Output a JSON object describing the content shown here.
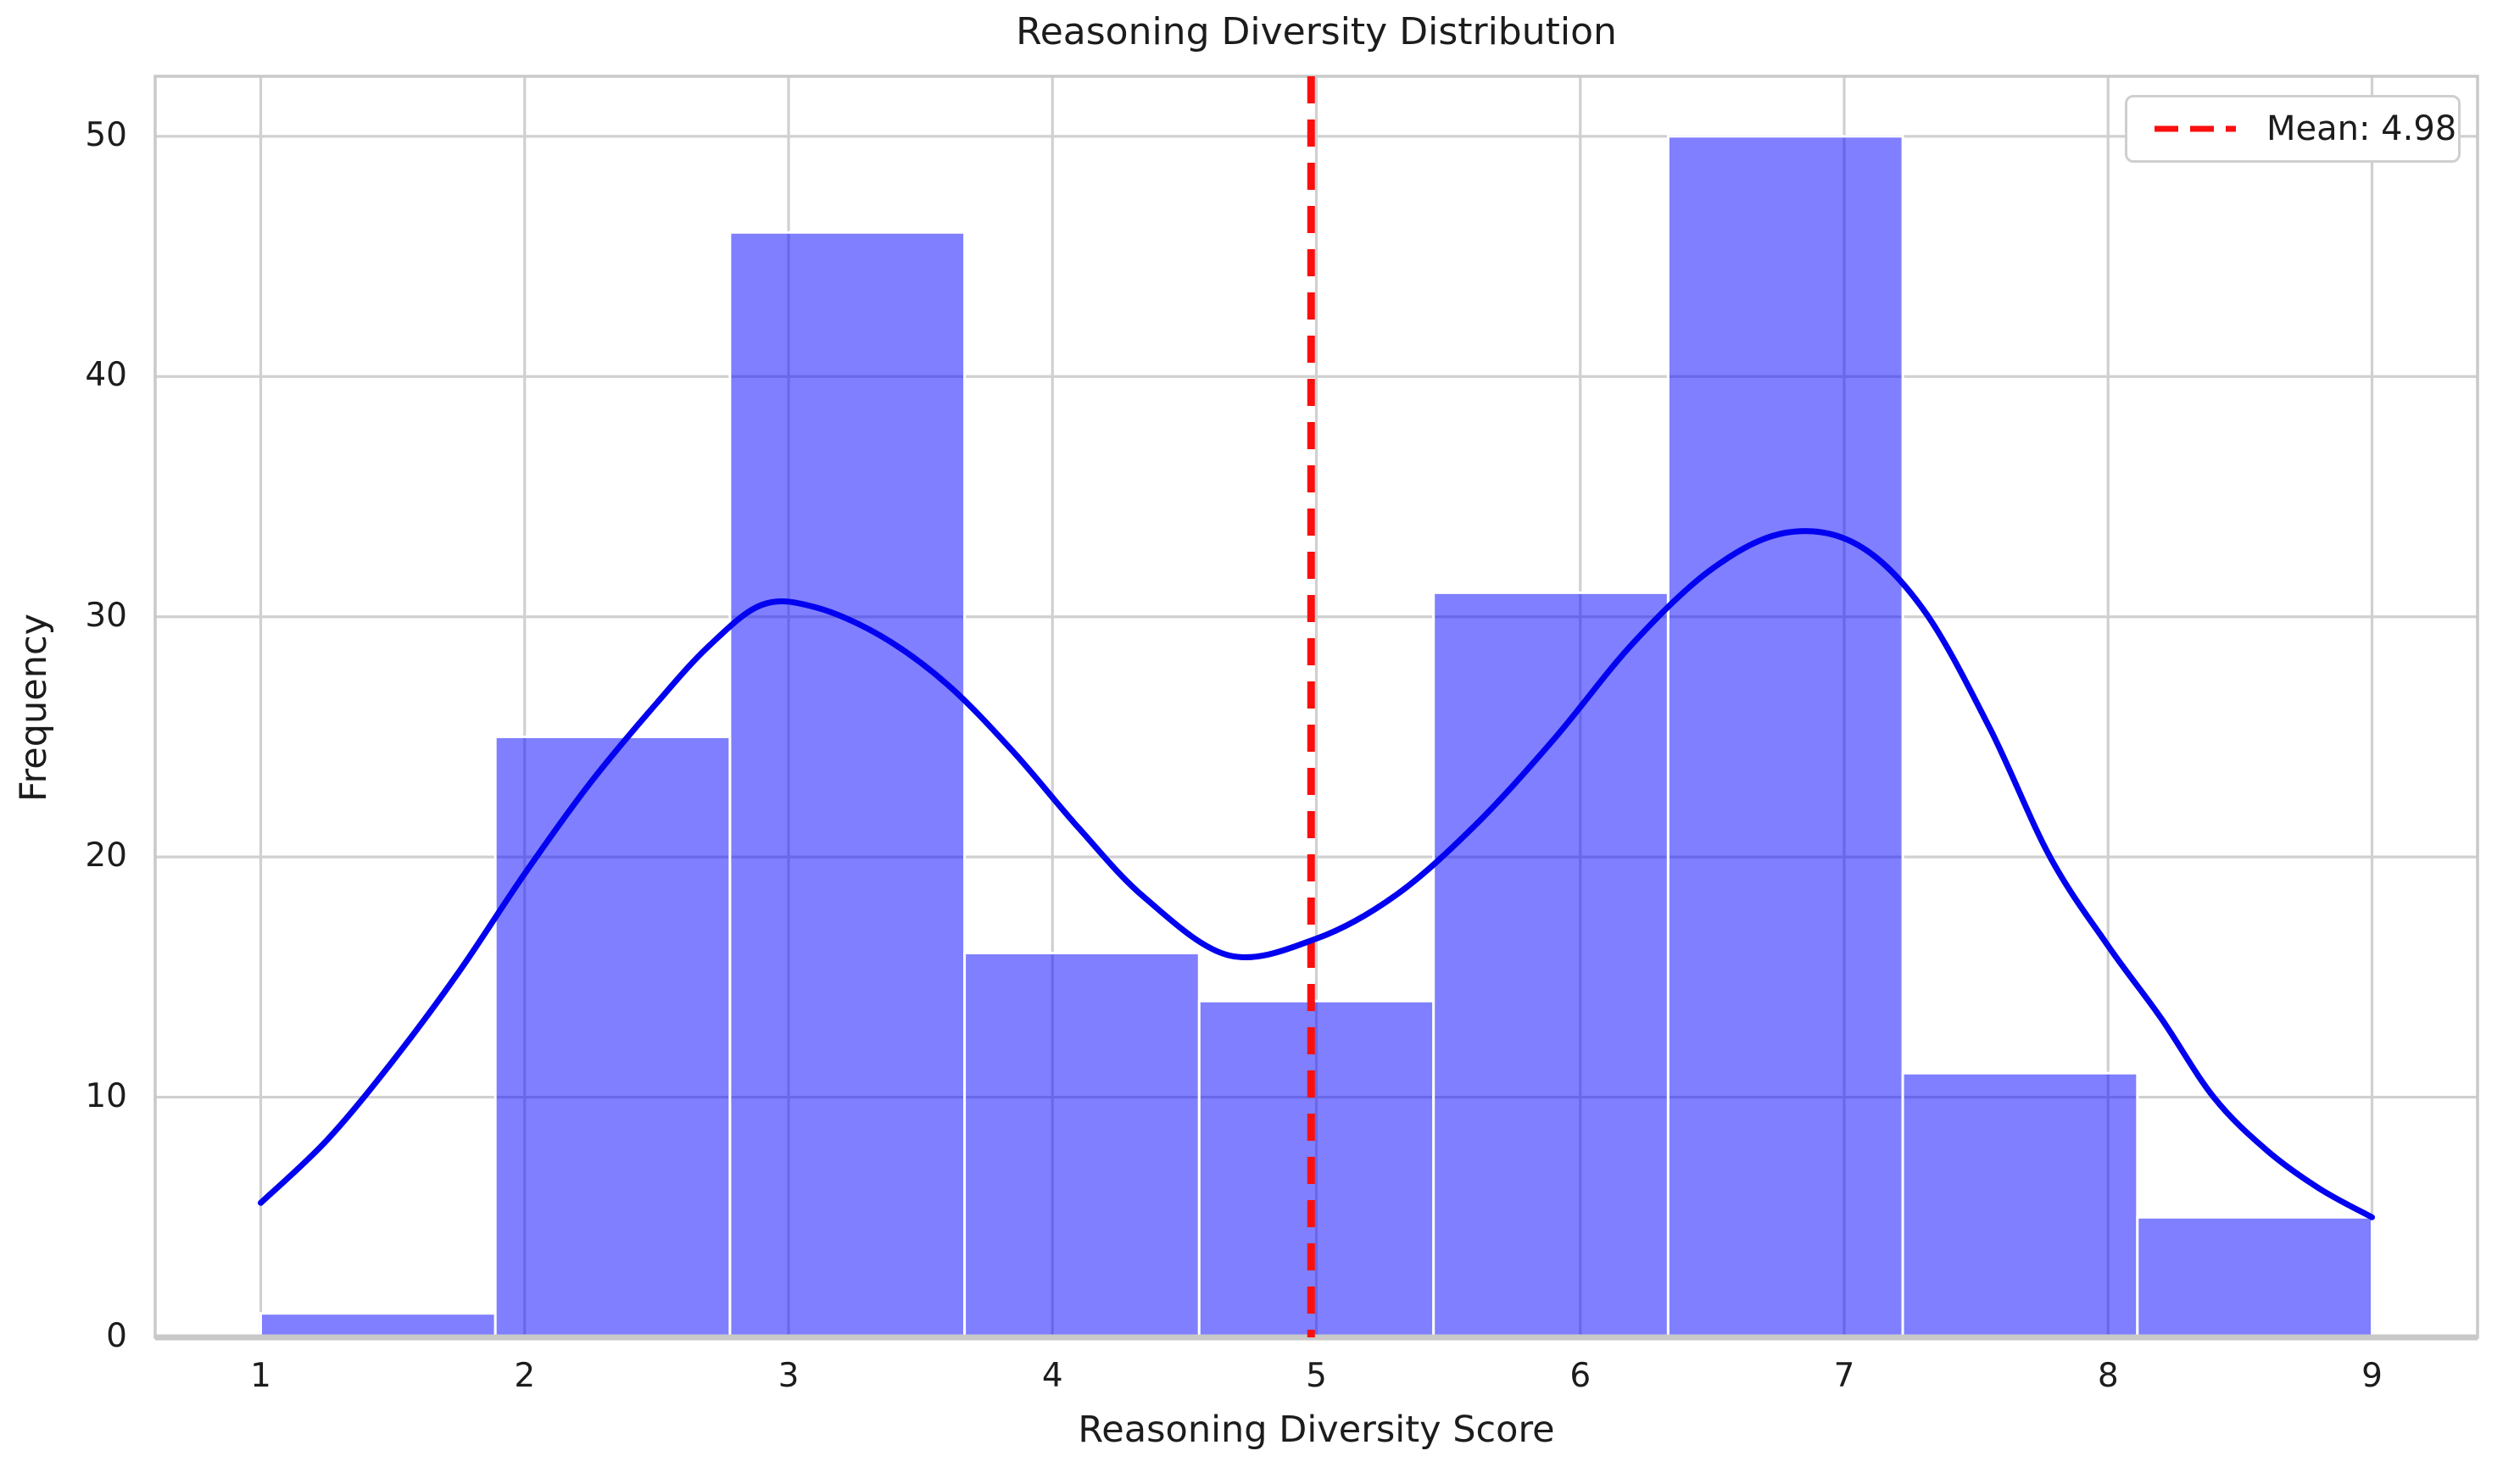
{
  "chart_data": {
    "type": "histogram+kde",
    "title": "Reasoning Diversity Distribution",
    "xlabel": "Reasoning Diversity Score",
    "ylabel": "Frequency",
    "bins": {
      "edges": [
        1.0,
        1.889,
        2.778,
        3.667,
        4.556,
        5.444,
        6.333,
        7.222,
        8.111,
        9.0
      ],
      "counts": [
        1,
        25,
        46,
        16,
        14,
        31,
        50,
        11,
        5
      ]
    },
    "kde_curve": {
      "points": [
        [
          1.0,
          5.6
        ],
        [
          1.25,
          8.2
        ],
        [
          1.5,
          11.5
        ],
        [
          1.75,
          15.2
        ],
        [
          2.0,
          19.3
        ],
        [
          2.25,
          23.1
        ],
        [
          2.5,
          26.4
        ],
        [
          2.7,
          28.8
        ],
        [
          2.9,
          30.5
        ],
        [
          3.1,
          30.4
        ],
        [
          3.35,
          29.2
        ],
        [
          3.6,
          27.2
        ],
        [
          3.85,
          24.4
        ],
        [
          4.1,
          21.2
        ],
        [
          4.35,
          18.3
        ],
        [
          4.67,
          15.9
        ],
        [
          5.0,
          16.6
        ],
        [
          5.3,
          18.4
        ],
        [
          5.6,
          21.3
        ],
        [
          5.9,
          24.9
        ],
        [
          6.2,
          28.9
        ],
        [
          6.5,
          32.0
        ],
        [
          6.78,
          33.5
        ],
        [
          7.05,
          33.0
        ],
        [
          7.3,
          30.3
        ],
        [
          7.55,
          25.4
        ],
        [
          7.78,
          20.0
        ],
        [
          8.0,
          16.3
        ],
        [
          8.2,
          13.3
        ],
        [
          8.4,
          10.0
        ],
        [
          8.6,
          7.8
        ],
        [
          8.8,
          6.2
        ],
        [
          9.0,
          5.0
        ]
      ]
    },
    "mean_line": {
      "x": 4.98,
      "label": "Mean: 4.98",
      "style": "dashed"
    },
    "axes": {
      "xlim": [
        0.6,
        9.4
      ],
      "ylim": [
        0,
        52.5
      ],
      "xticks": [
        1,
        2,
        3,
        4,
        5,
        6,
        7,
        8,
        9
      ],
      "yticks": [
        0,
        10,
        20,
        30,
        40,
        50
      ],
      "grid": true,
      "legend_position": "upper right"
    },
    "colors": {
      "bar_fill": "#0000ff",
      "bar_alpha": 0.5,
      "bar_edge": "#ffffff",
      "kde_line": "#0202f0",
      "mean_line": "#fa0f0f",
      "grid": "#d0d0d0",
      "spine": "#c9c9c9",
      "text": "#1c1c1c"
    }
  }
}
